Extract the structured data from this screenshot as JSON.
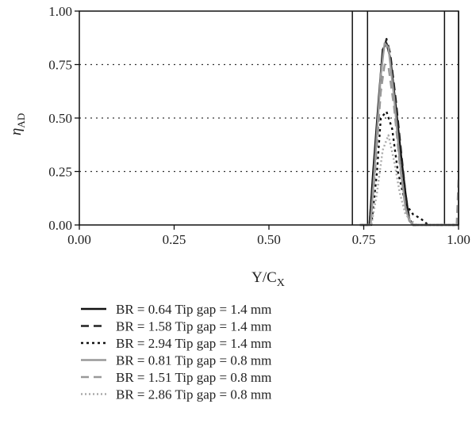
{
  "chart_data": {
    "type": "line",
    "xlabel": "Y/C",
    "xlabel_sub": "X",
    "ylabel": "η",
    "ylabel_sub": "AD",
    "xlim": [
      0,
      1
    ],
    "ylim": [
      0,
      1
    ],
    "x_ticks": [
      "0.00",
      "0.25",
      "0.50",
      "0.75",
      "1.00"
    ],
    "y_ticks": [
      "0.00",
      "0.25",
      "0.50",
      "0.75",
      "1.00"
    ],
    "y_tick_values": [
      0,
      0.25,
      0.5,
      0.75,
      1.0
    ],
    "x_tick_values": [
      0,
      0.25,
      0.5,
      0.75,
      1.0
    ],
    "horizontal_grid": "dotted",
    "vertical_lines": [
      0.72,
      0.76,
      0.963,
      1.0
    ],
    "legend_position": "bottom",
    "series": [
      {
        "name": "BR = 0.64 Tip gap = 1.4 mm",
        "color": "#111111",
        "dash": "solid",
        "x": [
          0.74,
          0.765,
          0.775,
          0.79,
          0.8,
          0.81,
          0.82,
          0.835,
          0.85,
          0.86,
          0.87,
          0.88,
          0.9,
          1.0
        ],
        "y": [
          0,
          0,
          0.25,
          0.6,
          0.82,
          0.85,
          0.78,
          0.55,
          0.3,
          0.15,
          0.02,
          0,
          0,
          0
        ]
      },
      {
        "name": "BR = 1.58 Tip gap = 1.4 mm",
        "color": "#222222",
        "dash": "10,6",
        "x": [
          0.74,
          0.765,
          0.775,
          0.79,
          0.8,
          0.81,
          0.82,
          0.835,
          0.85,
          0.86,
          0.87,
          0.88,
          0.9,
          1.0
        ],
        "y": [
          0,
          0,
          0.22,
          0.57,
          0.8,
          0.87,
          0.8,
          0.58,
          0.32,
          0.15,
          0.03,
          0,
          0,
          0
        ]
      },
      {
        "name": "BR = 2.94 Tip gap = 1.4 mm",
        "color": "#111111",
        "dash": "3,4",
        "x": [
          0.74,
          0.77,
          0.785,
          0.795,
          0.81,
          0.825,
          0.84,
          0.86,
          0.88,
          0.9,
          0.92,
          1.0
        ],
        "y": [
          0,
          0,
          0.25,
          0.5,
          0.53,
          0.45,
          0.25,
          0.1,
          0.05,
          0.03,
          0,
          0
        ]
      },
      {
        "name": "BR = 0.81 Tip gap = 0.8 mm",
        "color": "#999999",
        "dash": "solid",
        "x": [
          0.74,
          0.768,
          0.78,
          0.795,
          0.805,
          0.815,
          0.83,
          0.845,
          0.86,
          0.87,
          0.88,
          1.0
        ],
        "y": [
          0,
          0,
          0.3,
          0.7,
          0.85,
          0.83,
          0.6,
          0.3,
          0.08,
          0.02,
          0,
          0
        ]
      },
      {
        "name": "BR = 1.51 Tip gap = 0.8 mm",
        "color": "#999999",
        "dash": "10,6",
        "x": [
          0.74,
          0.768,
          0.78,
          0.795,
          0.805,
          0.815,
          0.83,
          0.845,
          0.86,
          0.87,
          0.88,
          0.995,
          1.0
        ],
        "y": [
          0,
          0,
          0.25,
          0.62,
          0.75,
          0.74,
          0.55,
          0.28,
          0.08,
          0.02,
          0,
          0,
          0.22
        ]
      },
      {
        "name": "BR = 2.86 Tip gap = 0.8 mm",
        "color": "#aaaaaa",
        "dash": "2,3",
        "x": [
          0.74,
          0.77,
          0.785,
          0.8,
          0.815,
          0.83,
          0.845,
          0.86,
          0.875,
          0.89,
          1.0
        ],
        "y": [
          0,
          0,
          0.15,
          0.35,
          0.42,
          0.3,
          0.15,
          0.05,
          0.02,
          0,
          0
        ]
      }
    ]
  }
}
